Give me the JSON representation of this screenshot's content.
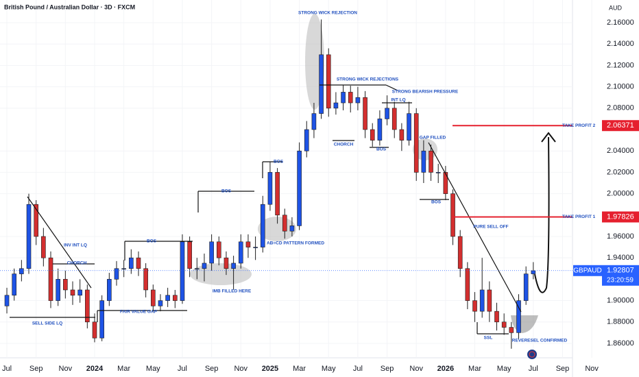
{
  "chart_data": {
    "type": "candlestick",
    "title": "British Pound / Australian Dollar · 3D · FXCM",
    "currency": "AUD",
    "symbol": "GBPAUD",
    "last_price": 1.92807,
    "countdown": "23:20:59",
    "up_color": "#1e53e5",
    "down_color": "#d32f2f",
    "level_color": "#e5202e",
    "price_line_color": "#2962ff",
    "levels": [
      {
        "name": "TAKE PROFIT 2",
        "value": 2.06371
      },
      {
        "name": "TAKE PROFIT 1",
        "value": 1.97826
      }
    ],
    "xlim": [
      -0.47,
      38.68
    ],
    "xticks": [
      {
        "value": 0,
        "label": "Jul"
      },
      {
        "value": 2,
        "label": "Sep"
      },
      {
        "value": 4,
        "label": "Nov"
      },
      {
        "value": 6,
        "label": "2024"
      },
      {
        "value": 8,
        "label": "Mar"
      },
      {
        "value": 10,
        "label": "May"
      },
      {
        "value": 12,
        "label": "Jul"
      },
      {
        "value": 14,
        "label": "Sep"
      },
      {
        "value": 16,
        "label": "Nov"
      },
      {
        "value": 18,
        "label": "2025"
      },
      {
        "value": 20,
        "label": "Mar"
      },
      {
        "value": 22,
        "label": "May"
      },
      {
        "value": 24,
        "label": "Jul"
      },
      {
        "value": 26,
        "label": "Sep"
      },
      {
        "value": 28,
        "label": "Nov"
      },
      {
        "value": 30,
        "label": "2026"
      },
      {
        "value": 32,
        "label": "Mar"
      },
      {
        "value": 34,
        "label": "May"
      },
      {
        "value": 36,
        "label": "Jul"
      },
      {
        "value": 38,
        "label": "Sep"
      },
      {
        "value": 40,
        "label": "Nov"
      }
    ],
    "ylim": [
      1.8465,
      2.1812
    ],
    "yticks": [
      {
        "value": 1.86,
        "label": "1.86000"
      },
      {
        "value": 1.88,
        "label": "1.88000"
      },
      {
        "value": 1.9,
        "label": "1.90000"
      },
      {
        "value": 1.94,
        "label": "1.94000"
      },
      {
        "value": 1.96,
        "label": "1.96000"
      },
      {
        "value": 2.0,
        "label": "2.00000"
      },
      {
        "value": 2.02,
        "label": "2.02000"
      },
      {
        "value": 2.04,
        "label": "2.04000"
      },
      {
        "value": 2.08,
        "label": "2.08000"
      },
      {
        "value": 2.1,
        "label": "2.10000"
      },
      {
        "value": 2.12,
        "label": "2.12000"
      },
      {
        "value": 2.14,
        "label": "2.14000"
      },
      {
        "value": 2.16,
        "label": "2.16000"
      }
    ],
    "x": [
      0,
      0.5,
      1,
      1.5,
      2,
      2.5,
      3,
      3.5,
      4,
      4.5,
      5,
      5.5,
      6,
      6.5,
      7,
      7.5,
      8,
      8.5,
      9,
      9.5,
      10,
      10.5,
      11,
      11.5,
      12,
      12.5,
      13,
      13.5,
      14,
      14.5,
      15,
      15.5,
      16,
      16.5,
      17,
      17.5,
      18,
      18.5,
      19,
      19.5,
      20,
      20.5,
      21,
      21.5,
      22,
      22.5,
      23,
      23.5,
      24,
      24.5,
      25,
      25.5,
      26,
      26.5,
      27,
      27.5,
      28,
      28.5,
      29,
      29.5,
      30,
      30.5,
      31,
      31.5,
      32,
      32.5,
      33,
      33.5,
      34,
      34.5,
      35,
      35.5,
      36
    ],
    "open": [
      1.895,
      1.905,
      1.925,
      1.93,
      1.99,
      1.96,
      1.94,
      1.9,
      1.92,
      1.91,
      1.905,
      1.91,
      1.88,
      1.865,
      1.9,
      1.92,
      1.93,
      1.93,
      1.94,
      1.93,
      1.91,
      1.895,
      1.9,
      1.905,
      1.9,
      1.955,
      1.93,
      1.93,
      1.935,
      1.955,
      1.94,
      1.93,
      1.935,
      1.955,
      1.95,
      1.95,
      1.99,
      2.02,
      1.98,
      1.965,
      1.97,
      2.04,
      2.06,
      2.075,
      2.13,
      2.08,
      2.085,
      2.095,
      2.085,
      2.09,
      2.06,
      2.05,
      2.07,
      2.08,
      2.06,
      2.05,
      2.075,
      2.02,
      2.04,
      2.02,
      2.02,
      2.0,
      1.96,
      1.93,
      1.9,
      1.89,
      1.91,
      1.89,
      1.88,
      1.875,
      1.87,
      1.9,
      1.925
    ],
    "high": [
      1.912,
      1.93,
      1.938,
      2.0,
      1.994,
      1.968,
      1.946,
      1.93,
      1.928,
      1.918,
      1.92,
      1.915,
      1.888,
      1.905,
      1.926,
      1.937,
      1.938,
      1.948,
      1.946,
      1.935,
      1.915,
      1.906,
      1.912,
      1.91,
      1.962,
      1.96,
      1.94,
      1.944,
      1.962,
      1.96,
      1.946,
      1.942,
      1.962,
      1.962,
      1.96,
      1.998,
      2.03,
      2.024,
      1.986,
      1.978,
      2.048,
      2.068,
      2.085,
      2.163,
      2.136,
      2.095,
      2.102,
      2.101,
      2.1,
      2.096,
      2.066,
      2.078,
      2.092,
      2.086,
      2.066,
      2.086,
      2.08,
      2.05,
      2.046,
      2.028,
      2.026,
      2.004,
      1.966,
      1.936,
      1.908,
      1.94,
      1.918,
      1.898,
      1.888,
      1.88,
      1.906,
      1.932,
      1.936
    ],
    "low": [
      1.888,
      1.9,
      1.918,
      1.925,
      1.952,
      1.932,
      1.893,
      1.895,
      1.902,
      1.896,
      1.898,
      1.874,
      1.861,
      1.862,
      1.895,
      1.914,
      1.922,
      1.925,
      1.923,
      1.903,
      1.889,
      1.89,
      1.894,
      1.893,
      1.897,
      1.922,
      1.92,
      1.918,
      1.928,
      1.933,
      1.924,
      1.91,
      1.93,
      1.94,
      1.938,
      1.945,
      1.984,
      1.972,
      1.958,
      1.96,
      1.966,
      2.034,
      2.052,
      2.07,
      2.072,
      2.074,
      2.078,
      2.076,
      2.078,
      2.052,
      2.044,
      2.045,
      2.064,
      2.052,
      2.04,
      2.045,
      2.012,
      2.01,
      2.012,
      2.01,
      1.994,
      1.952,
      1.922,
      1.892,
      1.88,
      1.884,
      1.88,
      1.872,
      1.868,
      1.855,
      1.864,
      1.896,
      1.92
    ],
    "close": [
      1.905,
      1.925,
      1.93,
      1.99,
      1.96,
      1.94,
      1.9,
      1.92,
      1.91,
      1.905,
      1.91,
      1.88,
      1.865,
      1.9,
      1.92,
      1.93,
      1.93,
      1.94,
      1.93,
      1.91,
      1.895,
      1.9,
      1.905,
      1.9,
      1.955,
      1.93,
      1.93,
      1.935,
      1.955,
      1.94,
      1.93,
      1.935,
      1.955,
      1.95,
      1.95,
      1.99,
      2.02,
      1.98,
      1.965,
      1.97,
      2.04,
      2.06,
      2.075,
      2.13,
      2.08,
      2.085,
      2.095,
      2.085,
      2.09,
      2.06,
      2.05,
      2.07,
      2.08,
      2.06,
      2.05,
      2.075,
      2.02,
      2.04,
      2.02,
      2.02,
      2.0,
      1.96,
      1.93,
      1.9,
      1.89,
      1.91,
      1.89,
      1.88,
      1.875,
      1.87,
      1.9,
      1.925,
      1.928
    ]
  },
  "annotations": [
    "STRONG WICK REJECTION",
    "STRONG WICK REJECTIONS",
    "STRONG BEARISH PRESSURE",
    "INT LQ",
    "CHORCH",
    "BOS",
    "GAP FILLED",
    "BOS",
    "BOS",
    "BOS",
    "PURE SELL OFF",
    "AB=CD PATTERN FORMED",
    "BOS",
    "INV INT LQ",
    "CHORCH",
    "IMB FILLED HERE",
    "FAIR VALUE GAP",
    "SELL SIDE LQ",
    "SSL",
    "REVERESEL CONFIRMED"
  ]
}
